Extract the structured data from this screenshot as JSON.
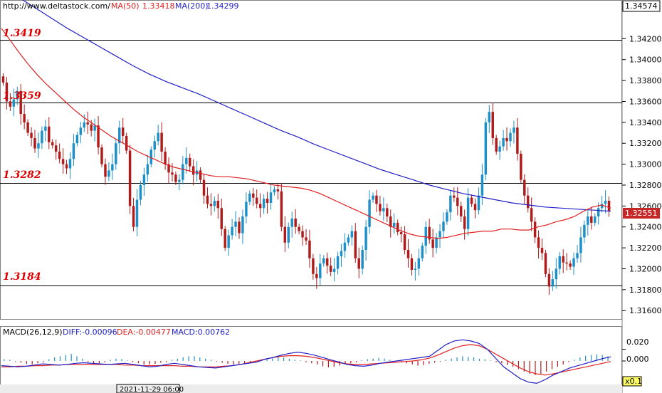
{
  "header": {
    "site": "http://www.deltastock.com/",
    "ma50_label": "MA(50)",
    "ma50_value": "1.33418",
    "ma200_label": "MA(200)",
    "ma200_value": "1.34299"
  },
  "price_axis": {
    "top_label": "1.34574",
    "current_label": "1.32551",
    "ticks": [
      "1.34200",
      "1.34000",
      "1.33800",
      "1.33600",
      "1.33400",
      "1.33200",
      "1.33000",
      "1.32800",
      "1.32600",
      "1.32400",
      "1.32200",
      "1.32000",
      "1.31800",
      "1.31600"
    ]
  },
  "macd": {
    "label": "MACD(26,12,9)",
    "diff_label": "DIFF:-0.00096",
    "dea_label": "DEA:-0.00477",
    "macd_label": "MACD:0.00762",
    "ticks": [
      "0.020",
      "0.000"
    ],
    "multiplier": "x0.1"
  },
  "time_axis": {
    "cursor_label": "2021-11-29 06:00"
  },
  "colors": {
    "up": "#1e90c8",
    "down": "#b01c1c",
    "ma50": "#e02020",
    "ma200": "#1f1fc8",
    "level": "#dd0000"
  },
  "chart_data": {
    "type": "candlestick",
    "ylim": [
      1.3152,
      1.3457
    ],
    "levels": [
      "1.3419",
      "1.3359",
      "1.3282",
      "1.3184"
    ],
    "closes": [
      1.3378,
      1.336,
      1.3355,
      1.3362,
      1.337,
      1.3348,
      1.334,
      1.333,
      1.3325,
      1.3315,
      1.332,
      1.3332,
      1.3336,
      1.3321,
      1.3318,
      1.3312,
      1.3305,
      1.33,
      1.3296,
      1.3305,
      1.332,
      1.3328,
      1.3335,
      1.334,
      1.3338,
      1.3332,
      1.3337,
      1.3316,
      1.33,
      1.3288,
      1.3294,
      1.33,
      1.332,
      1.3335,
      1.3327,
      1.3313,
      1.326,
      1.324,
      1.3266,
      1.328,
      1.329,
      1.33,
      1.3314,
      1.3322,
      1.333,
      1.3312,
      1.33,
      1.3292,
      1.329,
      1.3283,
      1.3285,
      1.33,
      1.3306,
      1.3298,
      1.329,
      1.3294,
      1.3285,
      1.327,
      1.3262,
      1.326,
      1.3265,
      1.3258,
      1.3238,
      1.322,
      1.3232,
      1.324,
      1.3245,
      1.3234,
      1.325,
      1.3264,
      1.3272,
      1.3268,
      1.3262,
      1.3258,
      1.3267,
      1.3263,
      1.3273,
      1.3276,
      1.3274,
      1.324,
      1.3225,
      1.324,
      1.3248,
      1.324,
      1.3236,
      1.323,
      1.3227,
      1.321,
      1.3195,
      1.3191,
      1.3205,
      1.321,
      1.3203,
      1.3197,
      1.32,
      1.3212,
      1.3217,
      1.3225,
      1.323,
      1.3236,
      1.321,
      1.32,
      1.3218,
      1.324,
      1.3266,
      1.327,
      1.3262,
      1.3255,
      1.3258,
      1.325,
      1.324,
      1.3244,
      1.3235,
      1.3233,
      1.3218,
      1.321,
      1.3199,
      1.32,
      1.321,
      1.3222,
      1.324,
      1.3228,
      1.322,
      1.323,
      1.3236,
      1.3245,
      1.3254,
      1.327,
      1.3268,
      1.326,
      1.325,
      1.3238,
      1.3268,
      1.3262,
      1.3256,
      1.327,
      1.329,
      1.334,
      1.335,
      1.3325,
      1.3312,
      1.3317,
      1.3325,
      1.3322,
      1.333,
      1.3335,
      1.331,
      1.3285,
      1.327,
      1.3258,
      1.3245,
      1.323,
      1.322,
      1.3215,
      1.3195,
      1.3183,
      1.319,
      1.32,
      1.3212,
      1.3206,
      1.3205,
      1.3202,
      1.321,
      1.3215,
      1.323,
      1.3242,
      1.325,
      1.3244,
      1.325,
      1.3258,
      1.3262,
      1.3265,
      1.3255
    ],
    "ma50": [
      1.343,
      1.3418,
      1.3406,
      1.3395,
      1.3385,
      1.3376,
      1.3368,
      1.336,
      1.3352,
      1.3345,
      1.3339,
      1.3333,
      1.3327,
      1.3322,
      1.3317,
      1.3312,
      1.3308,
      1.3304,
      1.33,
      1.3297,
      1.3295,
      1.3293,
      1.3291,
      1.3289,
      1.3288,
      1.3288,
      1.3287,
      1.3286,
      1.3284,
      1.3282,
      1.328,
      1.3279,
      1.3278,
      1.3277,
      1.3275,
      1.3272,
      1.3268,
      1.3264,
      1.326,
      1.3256,
      1.3252,
      1.3248,
      1.3244,
      1.324,
      1.3236,
      1.3233,
      1.3231,
      1.323,
      1.3229,
      1.323,
      1.3232,
      1.3234,
      1.3235,
      1.3236,
      1.3236,
      1.3238,
      1.3238,
      1.3237,
      1.3237,
      1.324,
      1.3242,
      1.3245,
      1.3247,
      1.325,
      1.3255,
      1.3259,
      1.3261,
      1.3258
    ],
    "ma200": [
      1.347,
      1.346,
      1.345,
      1.344,
      1.343,
      1.3421,
      1.3412,
      1.3403,
      1.3394,
      1.3386,
      1.3379,
      1.3373,
      1.3367,
      1.336,
      1.3353,
      1.3346,
      1.3339,
      1.3332,
      1.3326,
      1.3319,
      1.3313,
      1.3307,
      1.3301,
      1.3295,
      1.329,
      1.3285,
      1.328,
      1.3276,
      1.3272,
      1.3269,
      1.3266,
      1.3263,
      1.3261,
      1.3259,
      1.3258,
      1.3257,
      1.3256,
      1.3255
    ],
    "macd_hist": [
      0.003,
      0.002,
      -0.001,
      -0.003,
      -0.005,
      -0.006,
      -0.004,
      -0.002,
      0.003,
      0.006,
      0.008,
      0.01,
      0.012,
      0.008,
      0.004,
      -0.002,
      -0.005,
      -0.004,
      -0.002,
      0.002,
      0.004,
      0.003,
      0.001,
      -0.002,
      -0.004,
      -0.006,
      -0.006,
      -0.005,
      -0.003,
      -0.002,
      0.002,
      0.004,
      0.006,
      0.008,
      0.008,
      0.006,
      0.004,
      0.002,
      -0.001,
      -0.003,
      -0.005,
      -0.006,
      -0.005,
      -0.004,
      -0.003,
      -0.002,
      0.001,
      0.003,
      0.005,
      0.007,
      0.006,
      0.004,
      0.002,
      0.001,
      -0.002,
      -0.004,
      -0.006,
      -0.009,
      -0.011,
      -0.01,
      -0.008,
      -0.006,
      -0.004,
      -0.002,
      0.001,
      0.003,
      0.004,
      0.005,
      0.004,
      0.002,
      0.0,
      -0.002,
      -0.004,
      -0.006,
      -0.008,
      -0.007,
      -0.005,
      -0.003,
      -0.001,
      0.002,
      0.004,
      0.006,
      0.008,
      0.007,
      0.006,
      0.004,
      0.003,
      0.001,
      -0.002,
      -0.004,
      -0.007,
      -0.01,
      -0.014,
      -0.018,
      -0.022,
      -0.024,
      -0.022,
      -0.018,
      -0.014,
      -0.01,
      -0.006,
      -0.002,
      0.002,
      0.006,
      0.009,
      0.01,
      0.011,
      0.01,
      0.008
    ],
    "macd_diff": [
      -0.008,
      -0.009,
      -0.01,
      -0.009,
      -0.007,
      -0.005,
      -0.006,
      -0.007,
      -0.006,
      -0.004,
      -0.003,
      -0.004,
      -0.005,
      -0.006,
      -0.005,
      -0.004,
      -0.006,
      -0.008,
      -0.01,
      -0.009,
      -0.006,
      -0.004,
      -0.006,
      -0.008,
      -0.01,
      -0.011,
      -0.012,
      -0.01,
      -0.008,
      -0.006,
      -0.004,
      -0.002,
      0.003,
      0.006,
      0.01,
      0.013,
      0.015,
      0.013,
      0.01,
      0.006,
      0.002,
      -0.002,
      -0.006,
      -0.008,
      -0.009,
      -0.007,
      -0.004,
      -0.002,
      0.0,
      0.002,
      0.004,
      0.006,
      0.008,
      0.018,
      0.028,
      0.034,
      0.036,
      0.034,
      0.03,
      0.02,
      0.005,
      -0.01,
      -0.02,
      -0.03,
      -0.036,
      -0.038,
      -0.032,
      -0.024,
      -0.018,
      -0.012,
      -0.008,
      -0.004,
      0.0,
      0.004,
      0.007
    ],
    "macd_dea": [
      -0.01,
      -0.01,
      -0.009,
      -0.009,
      -0.008,
      -0.008,
      -0.007,
      -0.007,
      -0.006,
      -0.006,
      -0.006,
      -0.006,
      -0.006,
      -0.006,
      -0.006,
      -0.007,
      -0.007,
      -0.008,
      -0.008,
      -0.008,
      -0.008,
      -0.008,
      -0.009,
      -0.009,
      -0.01,
      -0.01,
      -0.01,
      -0.009,
      -0.008,
      -0.006,
      -0.003,
      0.0,
      0.003,
      0.006,
      0.008,
      0.009,
      0.009,
      0.008,
      0.006,
      0.003,
      0.0,
      -0.003,
      -0.005,
      -0.006,
      -0.006,
      -0.005,
      -0.004,
      -0.003,
      -0.002,
      -0.001,
      0.0,
      0.002,
      0.005,
      0.01,
      0.016,
      0.022,
      0.026,
      0.028,
      0.026,
      0.02,
      0.012,
      0.004,
      -0.004,
      -0.012,
      -0.018,
      -0.022,
      -0.024,
      -0.022,
      -0.019,
      -0.016,
      -0.013,
      -0.01,
      -0.007,
      -0.004,
      -0.001
    ],
    "macd_ylim": [
      -0.04,
      0.04
    ]
  }
}
